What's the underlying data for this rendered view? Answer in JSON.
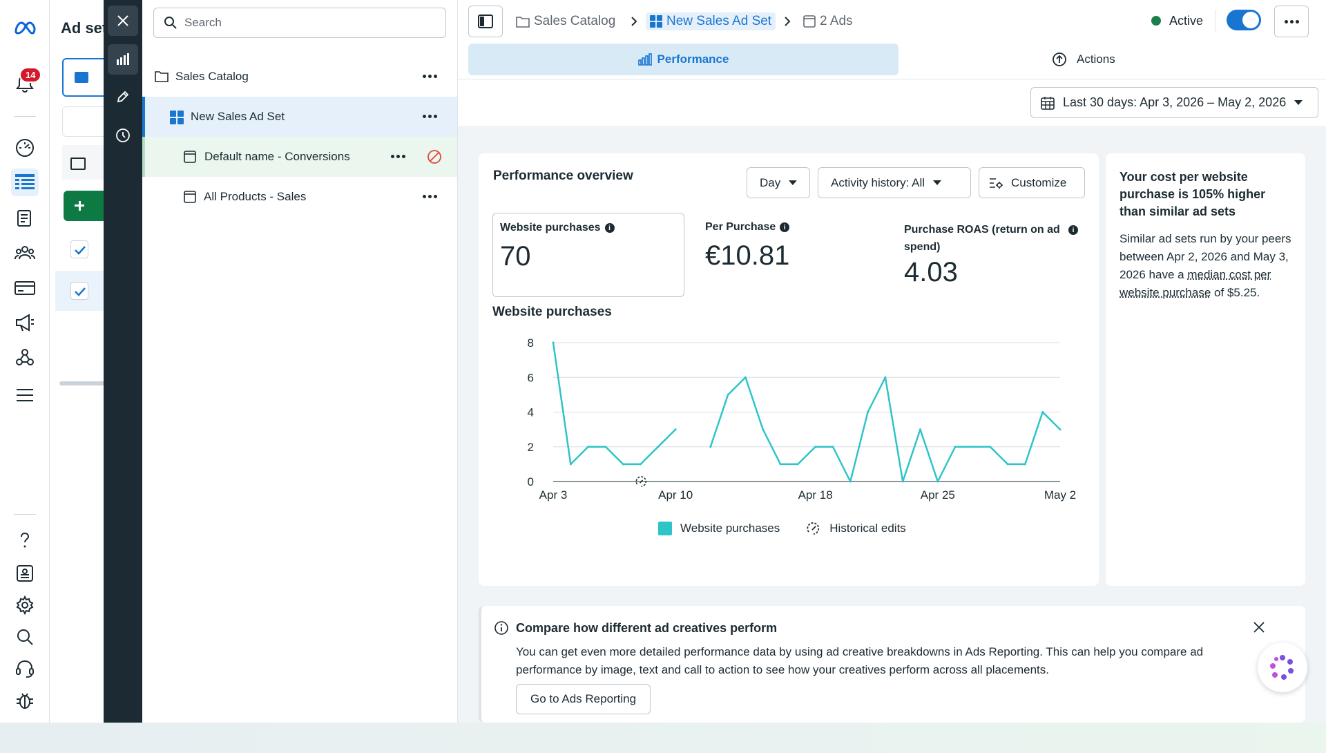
{
  "rail": {
    "notifications_count": "14",
    "icons": [
      "meta-logo-icon",
      "notifications-icon",
      "dashboard-icon",
      "campaigns-table-icon",
      "pages-icon",
      "audiences-icon",
      "billing-icon",
      "ads-manager-icon",
      "business-graph-icon",
      "menu-icon",
      "help-icon",
      "reports-icon",
      "settings-icon",
      "search-icon",
      "support-icon",
      "bug-report-icon"
    ]
  },
  "under": {
    "title": "Ad sets"
  },
  "strip": {
    "icons": [
      "close-icon",
      "performance-chart-icon",
      "edit-pencil-icon",
      "history-clock-icon"
    ]
  },
  "tree": {
    "search_placeholder": "Search",
    "items": [
      {
        "label": "Sales Catalog",
        "icon": "folder-icon"
      },
      {
        "label": "New Sales Ad Set",
        "icon": "adset-grid-icon"
      },
      {
        "label": "Default name - Conversions",
        "icon": "ad-icon"
      },
      {
        "label": "All Products - Sales",
        "icon": "ad-icon"
      }
    ]
  },
  "header": {
    "breadcrumbs": [
      "Sales Catalog",
      "New Sales Ad Set",
      "2 Ads"
    ],
    "status_label": "Active",
    "status_color": "#1a7f4b",
    "toggle_on": true,
    "tabs": {
      "performance": "Performance",
      "actions": "Actions"
    }
  },
  "date_range": {
    "label": "Last 30 days: Apr 3, 2026 – May 2, 2026"
  },
  "overview": {
    "title": "Performance overview",
    "granularity": "Day",
    "activity_filter": "Activity history: All",
    "customize_label": "Customize",
    "metrics": [
      {
        "label": "Website purchases",
        "value": "70"
      },
      {
        "label": "Per Purchase",
        "value": "€10.81"
      },
      {
        "label": "Purchase ROAS (return on ad spend)",
        "value": "4.03"
      }
    ],
    "chart_title": "Website purchases"
  },
  "chart_data": {
    "type": "line",
    "title": "Website purchases",
    "xlabel": "",
    "ylabel": "",
    "x_tick_labels": [
      "Apr 3",
      "Apr 10",
      "Apr 18",
      "Apr 25",
      "May 2"
    ],
    "y_ticks": [
      0,
      2,
      4,
      6,
      8
    ],
    "ylim": [
      0,
      8
    ],
    "grid": true,
    "legend_position": "bottom",
    "dates": [
      "Apr 3",
      "Apr 4",
      "Apr 5",
      "Apr 6",
      "Apr 7",
      "Apr 8",
      "Apr 9",
      "Apr 10",
      "Apr 11",
      "Apr 12",
      "Apr 13",
      "Apr 14",
      "Apr 15",
      "Apr 16",
      "Apr 17",
      "Apr 18",
      "Apr 19",
      "Apr 20",
      "Apr 21",
      "Apr 22",
      "Apr 23",
      "Apr 24",
      "Apr 25",
      "Apr 26",
      "Apr 27",
      "Apr 28",
      "Apr 29",
      "Apr 30",
      "May 1",
      "May 2"
    ],
    "series": [
      {
        "name": "Website purchases",
        "color": "#2ec4c8",
        "values": [
          8,
          1,
          2,
          2,
          1,
          1,
          2,
          3,
          null,
          2,
          5,
          6,
          3,
          1,
          1,
          2,
          2,
          0,
          4,
          6,
          0,
          3,
          0,
          2,
          2,
          2,
          1,
          1,
          4,
          3
        ]
      }
    ],
    "historical_edits": [
      "Apr 8"
    ],
    "legend": [
      "Website purchases",
      "Historical edits"
    ]
  },
  "insight": {
    "title": "Your cost per website purchase is 105% higher than similar ad sets",
    "body_pre": "Similar ad sets run by your peers between Apr 2, 2026 and May 3, 2026 have a",
    "body_link": "median cost per website purchase",
    "body_post": "of $5.25."
  },
  "notice": {
    "title": "Compare how different ad creatives perform",
    "body": "You can get even more detailed performance data by using ad creative breakdowns in Ads Reporting. This can help you compare ad performance by image, text and call to action to see how your creatives perform across all placements.",
    "button": "Go to Ads Reporting"
  }
}
